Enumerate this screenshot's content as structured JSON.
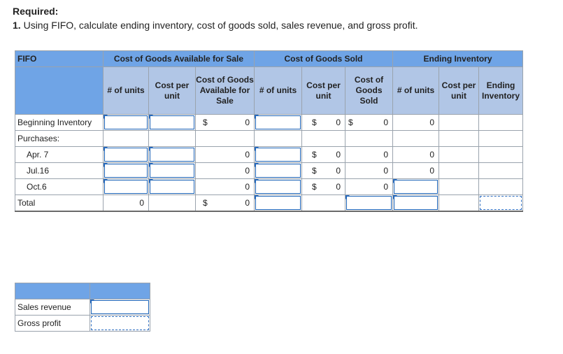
{
  "required": {
    "title": "Required:",
    "num": "1.",
    "text": "Using FIFO, calculate ending inventory, cost of goods sold, sales revenue, and gross profit."
  },
  "table": {
    "corner": "FIFO",
    "groups": [
      "Cost of Goods Available for Sale",
      "Cost of Goods Sold",
      "Ending Inventory"
    ],
    "sub": {
      "cga": [
        "# of units",
        "Cost per unit",
        "Cost of Goods Available for Sale"
      ],
      "cgs": [
        "# of units",
        "Cost per unit",
        "Cost of Goods Sold"
      ],
      "ei": [
        "# of units",
        "Cost per unit",
        "Ending Inventory"
      ]
    },
    "rows": {
      "beginning": "Beginning Inventory",
      "purchases": "Purchases:",
      "apr": "Apr. 7",
      "jul": "Jul.16",
      "oct": "Oct.6",
      "total": "Total"
    },
    "currency": "$",
    "zero": "0"
  },
  "summary": {
    "sales_revenue": "Sales revenue",
    "gross_profit": "Gross profit"
  },
  "colors": {
    "header": "#6fa4e6",
    "subheader": "#b1c6e6",
    "input_border": "#1c63b7"
  }
}
